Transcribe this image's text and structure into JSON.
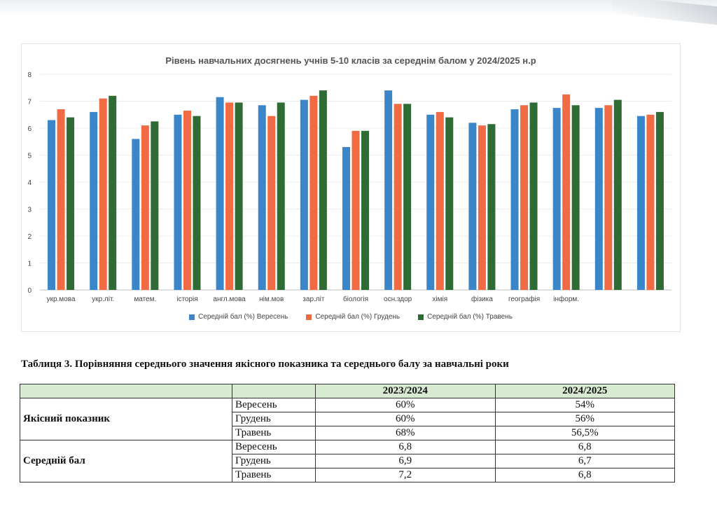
{
  "chart_data": {
    "type": "bar",
    "title": "Рівень навчальних досягнень учнів 5-10 класів за середнім балом у 2024/2025 н.р",
    "categories": [
      "укр.мова",
      "укр.літ.",
      "матем.",
      "історія",
      "англ.мова",
      "нім.мов",
      "зар.літ",
      "біологія",
      "осн.здор",
      "хімія",
      "фізика",
      "географія",
      "інформ.",
      "",
      ""
    ],
    "ylim": [
      0,
      8
    ],
    "yticks": [
      "0",
      "1",
      "2",
      "3",
      "4",
      "5",
      "6",
      "7",
      "8"
    ],
    "grid": true,
    "legend_position": "bottom",
    "xlabel": "",
    "ylabel": "",
    "series": [
      {
        "name": "Середній бал (%) Вересень",
        "color": "#3a86c8",
        "values": [
          6.3,
          6.6,
          5.6,
          6.5,
          7.15,
          6.85,
          7.05,
          5.3,
          7.4,
          6.5,
          6.2,
          6.7,
          6.75,
          6.75,
          6.45
        ]
      },
      {
        "name": "Середній бал (%) Грудень",
        "color": "#f06a43",
        "values": [
          6.7,
          7.1,
          6.1,
          6.65,
          6.95,
          6.45,
          7.2,
          5.9,
          6.9,
          6.6,
          6.1,
          6.85,
          7.25,
          6.85,
          6.5
        ]
      },
      {
        "name": "Середній бал (%) Травень",
        "color": "#2f6b34",
        "values": [
          6.4,
          7.2,
          6.25,
          6.45,
          6.95,
          6.95,
          7.4,
          5.9,
          6.9,
          6.4,
          6.15,
          6.95,
          6.85,
          7.05,
          6.6
        ]
      }
    ]
  },
  "table": {
    "caption": "Таблиця 3.  Порівняння середнього значення якісного показника та середнього балу за навчальні роки",
    "headers": [
      "",
      "",
      "2023/2024",
      "2024/2025"
    ],
    "groups": [
      {
        "label": "Якісний показник",
        "rows": [
          {
            "month": "Вересень",
            "y2023": "60%",
            "y2024": "54%"
          },
          {
            "month": "Грудень",
            "y2023": "60%",
            "y2024": "56%"
          },
          {
            "month": "Травень",
            "y2023": "68%",
            "y2024": "56,5%"
          }
        ]
      },
      {
        "label": "Середній бал",
        "rows": [
          {
            "month": "Вересень",
            "y2023": "6,8",
            "y2024": "6,8"
          },
          {
            "month": "Грудень",
            "y2023": "6,9",
            "y2024": "6,7"
          },
          {
            "month": "Травень",
            "y2023": "7,2",
            "y2024": "6,8"
          }
        ]
      }
    ]
  }
}
